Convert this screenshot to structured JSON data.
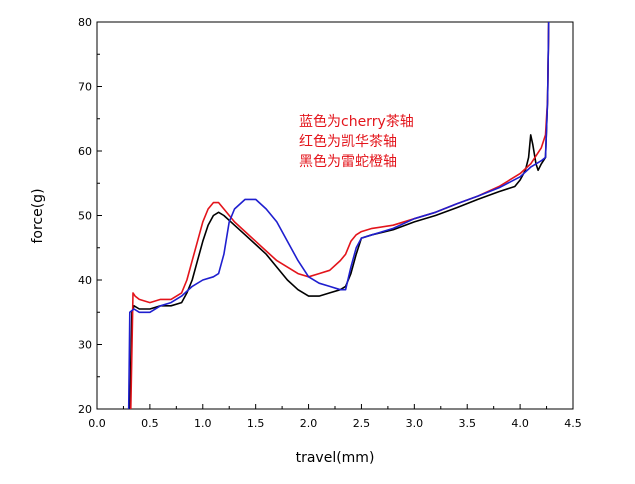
{
  "chart_data": {
    "type": "line",
    "title": "",
    "xlabel": "travel(mm)",
    "ylabel": "force(g)",
    "xlim": [
      0.0,
      4.5
    ],
    "ylim": [
      20,
      80
    ],
    "x_ticks": [
      "0.0",
      "0.5",
      "1.0",
      "1.5",
      "2.0",
      "2.5",
      "3.0",
      "3.5",
      "4.0",
      "4.5"
    ],
    "y_ticks": [
      "20",
      "30",
      "40",
      "50",
      "60",
      "70",
      "80"
    ],
    "grid": false,
    "legend": "none",
    "annotations": [
      "蓝色为cherry茶轴",
      "红色为凯华茶轴",
      "黑色为雷蛇橙轴"
    ],
    "series": [
      {
        "color": "#000000",
        "points": [
          [
            0.31,
            20
          ],
          [
            0.33,
            35
          ],
          [
            0.35,
            36
          ],
          [
            0.4,
            35.5
          ],
          [
            0.5,
            35.5
          ],
          [
            0.6,
            36
          ],
          [
            0.7,
            36
          ],
          [
            0.8,
            36.5
          ],
          [
            0.85,
            38
          ],
          [
            0.9,
            40
          ],
          [
            0.95,
            43
          ],
          [
            1.0,
            46
          ],
          [
            1.05,
            48.5
          ],
          [
            1.1,
            50
          ],
          [
            1.15,
            50.5
          ],
          [
            1.2,
            50
          ],
          [
            1.3,
            48.5
          ],
          [
            1.4,
            47
          ],
          [
            1.5,
            45.5
          ],
          [
            1.6,
            44
          ],
          [
            1.7,
            42
          ],
          [
            1.8,
            40
          ],
          [
            1.9,
            38.5
          ],
          [
            2.0,
            37.5
          ],
          [
            2.1,
            37.5
          ],
          [
            2.2,
            38
          ],
          [
            2.3,
            38.5
          ],
          [
            2.35,
            39
          ],
          [
            2.4,
            41
          ],
          [
            2.45,
            44
          ],
          [
            2.5,
            46.5
          ],
          [
            2.6,
            47
          ],
          [
            2.8,
            47.8
          ],
          [
            3.0,
            49
          ],
          [
            3.2,
            50
          ],
          [
            3.4,
            51.2
          ],
          [
            3.6,
            52.5
          ],
          [
            3.8,
            53.7
          ],
          [
            3.95,
            54.5
          ],
          [
            4.0,
            55.5
          ],
          [
            4.05,
            57
          ],
          [
            4.08,
            59
          ],
          [
            4.1,
            62.5
          ],
          [
            4.12,
            61
          ],
          [
            4.15,
            58
          ],
          [
            4.17,
            57
          ],
          [
            4.2,
            58
          ],
          [
            4.24,
            59
          ],
          [
            4.26,
            68
          ],
          [
            4.27,
            80
          ]
        ]
      },
      {
        "color": "#e3141b",
        "points": [
          [
            0.32,
            20
          ],
          [
            0.34,
            38
          ],
          [
            0.36,
            37.5
          ],
          [
            0.4,
            37
          ],
          [
            0.5,
            36.5
          ],
          [
            0.6,
            37
          ],
          [
            0.7,
            37
          ],
          [
            0.8,
            38
          ],
          [
            0.85,
            40
          ],
          [
            0.9,
            43
          ],
          [
            0.95,
            46
          ],
          [
            1.0,
            49
          ],
          [
            1.05,
            51
          ],
          [
            1.1,
            52
          ],
          [
            1.15,
            52
          ],
          [
            1.2,
            51
          ],
          [
            1.3,
            49
          ],
          [
            1.4,
            47.5
          ],
          [
            1.5,
            46
          ],
          [
            1.6,
            44.5
          ],
          [
            1.7,
            43
          ],
          [
            1.8,
            42
          ],
          [
            1.9,
            41
          ],
          [
            2.0,
            40.5
          ],
          [
            2.1,
            41
          ],
          [
            2.2,
            41.5
          ],
          [
            2.3,
            43
          ],
          [
            2.35,
            44
          ],
          [
            2.4,
            46
          ],
          [
            2.45,
            47
          ],
          [
            2.5,
            47.5
          ],
          [
            2.6,
            48
          ],
          [
            2.8,
            48.5
          ],
          [
            3.0,
            49.5
          ],
          [
            3.2,
            50.5
          ],
          [
            3.4,
            51.8
          ],
          [
            3.6,
            53
          ],
          [
            3.8,
            54.5
          ],
          [
            4.0,
            56.5
          ],
          [
            4.1,
            58
          ],
          [
            4.2,
            60.5
          ],
          [
            4.24,
            62.5
          ],
          [
            4.26,
            68
          ],
          [
            4.27,
            80
          ]
        ]
      },
      {
        "color": "#1f1fcf",
        "points": [
          [
            0.3,
            20
          ],
          [
            0.31,
            35
          ],
          [
            0.35,
            35.5
          ],
          [
            0.4,
            35
          ],
          [
            0.5,
            35
          ],
          [
            0.6,
            36
          ],
          [
            0.7,
            36.5
          ],
          [
            0.8,
            37.5
          ],
          [
            0.9,
            39
          ],
          [
            1.0,
            40
          ],
          [
            1.1,
            40.5
          ],
          [
            1.15,
            41
          ],
          [
            1.2,
            44
          ],
          [
            1.25,
            49
          ],
          [
            1.3,
            51
          ],
          [
            1.4,
            52.5
          ],
          [
            1.5,
            52.5
          ],
          [
            1.6,
            51
          ],
          [
            1.7,
            49
          ],
          [
            1.8,
            46
          ],
          [
            1.9,
            43
          ],
          [
            2.0,
            40.5
          ],
          [
            2.1,
            39.5
          ],
          [
            2.2,
            39
          ],
          [
            2.3,
            38.5
          ],
          [
            2.35,
            38.5
          ],
          [
            2.4,
            42
          ],
          [
            2.45,
            45
          ],
          [
            2.5,
            46.5
          ],
          [
            2.6,
            47
          ],
          [
            2.8,
            48
          ],
          [
            3.0,
            49.5
          ],
          [
            3.2,
            50.5
          ],
          [
            3.4,
            51.8
          ],
          [
            3.6,
            53
          ],
          [
            3.8,
            54.3
          ],
          [
            4.0,
            56
          ],
          [
            4.1,
            57.5
          ],
          [
            4.2,
            58.5
          ],
          [
            4.24,
            59
          ],
          [
            4.26,
            68
          ],
          [
            4.27,
            80
          ]
        ]
      }
    ]
  }
}
